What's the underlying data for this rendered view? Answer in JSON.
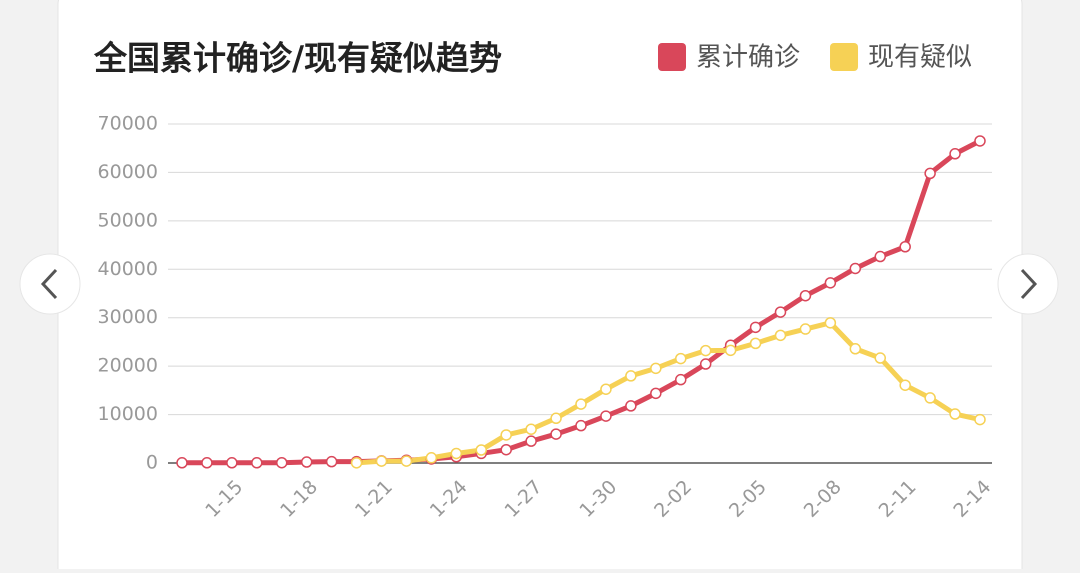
{
  "chart_data": {
    "type": "line",
    "title": "全国累计确诊/现有疑似趋势",
    "categories": [
      null,
      null,
      "1-15",
      null,
      null,
      "1-18",
      null,
      null,
      "1-21",
      null,
      null,
      "1-24",
      null,
      null,
      "1-27",
      null,
      null,
      "1-30",
      null,
      null,
      "2-02",
      null,
      null,
      "2-05",
      null,
      null,
      "2-08",
      null,
      null,
      "2-11",
      null,
      null,
      "2-14"
    ],
    "series": [
      {
        "name": "累计确诊",
        "color": "#d9475a",
        "values": [
          41,
          41,
          41,
          45,
          62,
          198,
          275,
          291,
          440,
          571,
          830,
          1287,
          1975,
          2744,
          4515,
          5974,
          7711,
          9692,
          11791,
          14380,
          17205,
          20438,
          24324,
          28018,
          31161,
          34546,
          37198,
          40171,
          42638,
          44653,
          59804,
          63851,
          66492
        ]
      },
      {
        "name": "现有疑似",
        "color": "#f6d155",
        "values": [
          null,
          null,
          null,
          null,
          null,
          null,
          null,
          27,
          393,
          393,
          1072,
          1965,
          2684,
          5794,
          6973,
          9239,
          12167,
          15238,
          17988,
          19544,
          21558,
          23214,
          23260,
          24702,
          26359,
          27657,
          28942,
          23589,
          21675,
          16067,
          13435,
          10109,
          8969
        ]
      }
    ],
    "ylim": [
      0,
      70000
    ],
    "yticks": [
      0,
      10000,
      20000,
      30000,
      40000,
      50000,
      60000,
      70000
    ],
    "grid": true,
    "legend": "top-right"
  }
}
